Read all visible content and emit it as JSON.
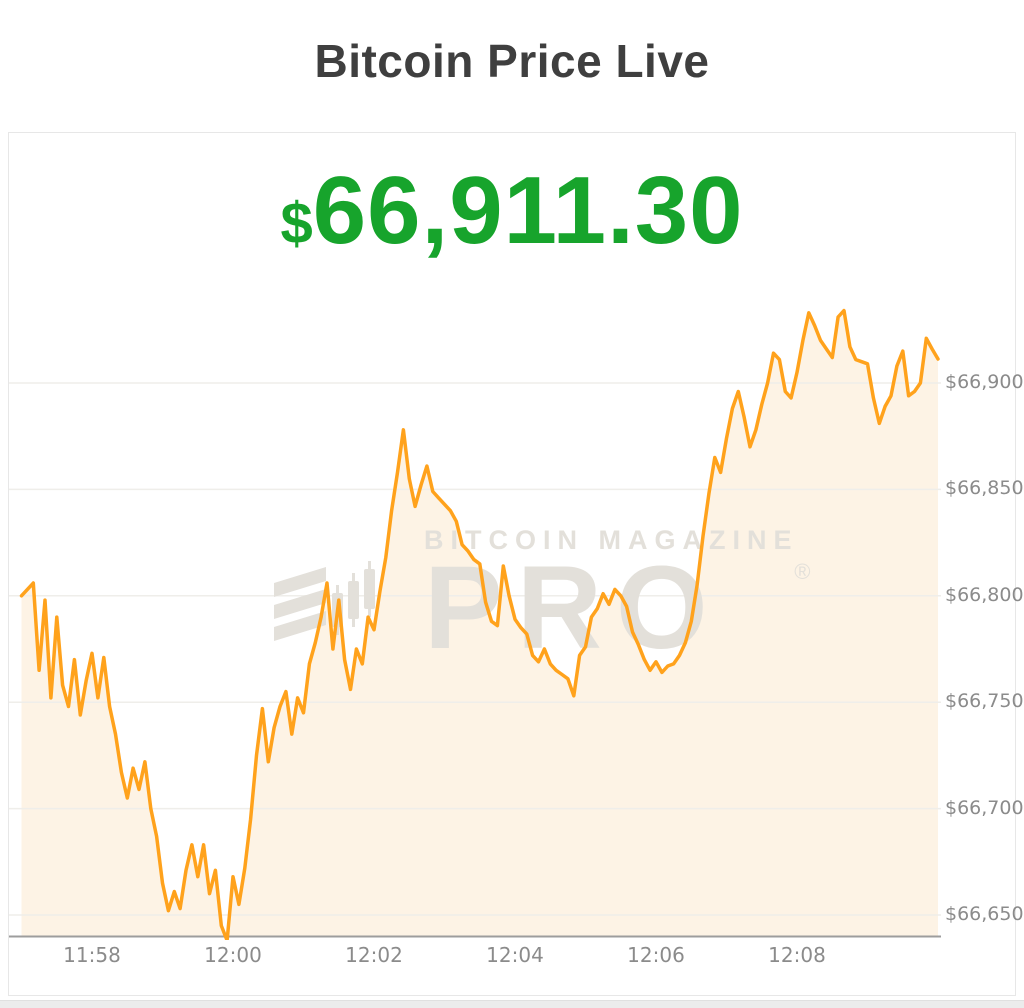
{
  "page": {
    "title": "Bitcoin Price Live"
  },
  "price": {
    "currency_symbol": "$",
    "value": "66,911.30",
    "color": "#17a42c"
  },
  "watermark": {
    "line1": "BITCOIN MAGAZINE",
    "line2": "PRO",
    "registered": "®"
  },
  "chart_data": {
    "type": "area",
    "title": "Bitcoin Price Live",
    "current_price": 66911.3,
    "x_tick_labels": [
      "11:58",
      "12:00",
      "12:02",
      "12:04",
      "12:06",
      "12:08"
    ],
    "y_tick_labels": [
      "$66,900",
      "$66,850",
      "$66,800",
      "$66,750",
      "$66,700",
      "$66,650"
    ],
    "y_tick_values": [
      66900,
      66850,
      66800,
      66750,
      66700,
      66650
    ],
    "ylim": [
      66639,
      66951
    ],
    "start_time": "11:57:00",
    "end_time": "12:10:00",
    "interval_seconds": 5,
    "y_axis_side": "right",
    "grid": true,
    "legend": "none",
    "line_color": "#ffa21c",
    "fill_color": "#fdf3e5",
    "grid_color": "#efeeea",
    "axis_color": "#9d9d9d",
    "label_color": "#8b8b8b",
    "prices": [
      66800,
      66803,
      66806,
      66765,
      66798,
      66752,
      66790,
      66758,
      66748,
      66770,
      66744,
      66760,
      66773,
      66752,
      66771,
      66748,
      66735,
      66717,
      66705,
      66719,
      66709,
      66722,
      66700,
      66687,
      66665,
      66652,
      66661,
      66653,
      66671,
      66683,
      66668,
      66683,
      66660,
      66671,
      66645,
      66638,
      66668,
      66655,
      66672,
      66695,
      66725,
      66747,
      66722,
      66738,
      66748,
      66755,
      66735,
      66752,
      66745,
      66768,
      66778,
      66790,
      66806,
      66775,
      66798,
      66770,
      66756,
      66775,
      66768,
      66790,
      66784,
      66802,
      66818,
      66840,
      66858,
      66878,
      66855,
      66842,
      66852,
      66861,
      66849,
      66846,
      66843,
      66840,
      66835,
      66824,
      66821,
      66817,
      66815,
      66797,
      66788,
      66786,
      66814,
      66800,
      66789,
      66785,
      66782,
      66772,
      66769,
      66775,
      66768,
      66765,
      66763,
      66761,
      66753,
      66772,
      66776,
      66790,
      66794,
      66801,
      66796,
      66803,
      66800,
      66795,
      66783,
      66777,
      66770,
      66765,
      66769,
      66764,
      66767,
      66768,
      66772,
      66778,
      66788,
      66805,
      66828,
      66848,
      66865,
      66858,
      66874,
      66888,
      66896,
      66884,
      66870,
      66878,
      66890,
      66900,
      66914,
      66911,
      66896,
      66893,
      66905,
      66920,
      66933,
      66927,
      66920,
      66916,
      66912,
      66931,
      66934,
      66917,
      66911,
      66910,
      66909,
      66893,
      66881,
      66889,
      66894,
      66908,
      66915,
      66894,
      66896,
      66900,
      66921,
      66916,
      66911.3
    ]
  }
}
